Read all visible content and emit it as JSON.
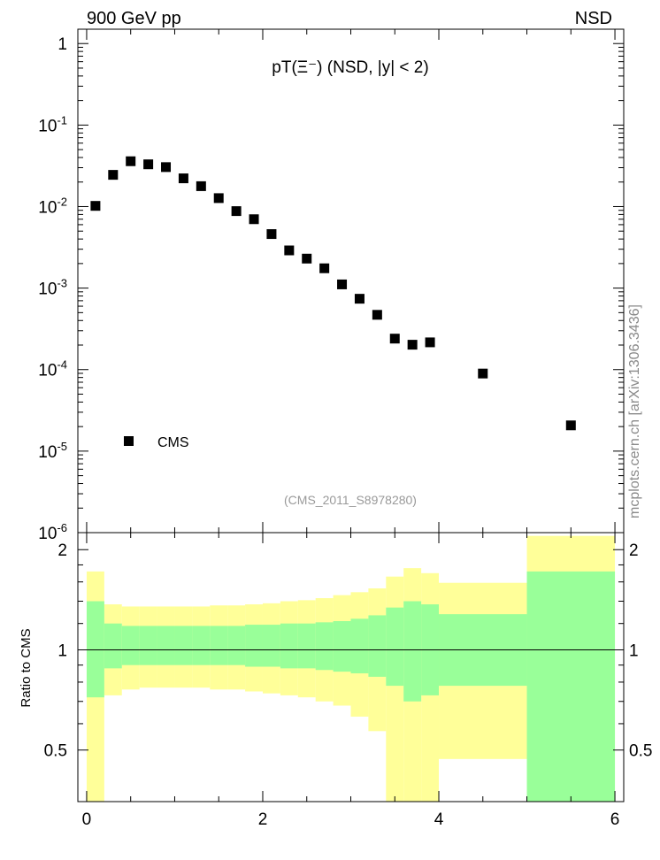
{
  "header": {
    "left": "900 GeV pp",
    "right": "NSD"
  },
  "side_label": "mcplots.cern.ch [arXiv:1306.3436]",
  "chart_data": [
    {
      "type": "scatter",
      "title": "pT(Ξ⁻) (NSD, |y| < 2)",
      "watermark": "(CMS_2011_S8978280)",
      "yscale": "log",
      "xlim": [
        -0.1,
        6.1
      ],
      "ylim": [
        1e-06,
        1.5
      ],
      "yticks": [
        {
          "value": 1,
          "label": "1"
        },
        {
          "value": 0.1,
          "label": "10^-1"
        },
        {
          "value": 0.01,
          "label": "10^-2"
        },
        {
          "value": 0.001,
          "label": "10^-3"
        },
        {
          "value": 0.0001,
          "label": "10^-4"
        },
        {
          "value": 1e-05,
          "label": "10^-5"
        },
        {
          "value": 1e-06,
          "label": "10^-6"
        }
      ],
      "legend": {
        "position": "bottom-left",
        "entries": [
          "CMS"
        ]
      },
      "series": [
        {
          "name": "CMS",
          "marker": "square",
          "color": "#000000",
          "x": [
            0.1,
            0.3,
            0.5,
            0.7,
            0.9,
            1.1,
            1.3,
            1.5,
            1.7,
            1.9,
            2.1,
            2.3,
            2.5,
            2.7,
            2.9,
            3.1,
            3.3,
            3.5,
            3.7,
            3.9,
            4.5,
            5.5
          ],
          "y": [
            0.0102,
            0.0245,
            0.036,
            0.033,
            0.0305,
            0.0222,
            0.0178,
            0.0127,
            0.0088,
            0.007,
            0.0046,
            0.0029,
            0.0023,
            0.00175,
            0.00111,
            0.00074,
            0.00047,
            0.00024,
            0.000202,
            0.000216,
            8.95e-05,
            2.07e-05
          ]
        }
      ]
    },
    {
      "type": "area",
      "ylabel": "Ratio to CMS",
      "xlim": [
        -0.1,
        6.1
      ],
      "ylim": [
        0.35,
        2.25
      ],
      "xticks": [
        0,
        2,
        4,
        6
      ],
      "yticks": [
        0.5,
        1,
        2
      ],
      "reference_line": 1,
      "colors": {
        "stat": "#99ff99",
        "total": "#ffff99"
      },
      "bins": [
        {
          "x0": 0.0,
          "x1": 0.2,
          "stat_lo": 0.72,
          "stat_hi": 1.4,
          "tot_lo": 0.35,
          "tot_hi": 1.72
        },
        {
          "x0": 0.2,
          "x1": 0.4,
          "stat_lo": 0.88,
          "stat_hi": 1.2,
          "tot_lo": 0.73,
          "tot_hi": 1.37
        },
        {
          "x0": 0.4,
          "x1": 0.6,
          "stat_lo": 0.9,
          "stat_hi": 1.18,
          "tot_lo": 0.76,
          "tot_hi": 1.35
        },
        {
          "x0": 0.6,
          "x1": 0.8,
          "stat_lo": 0.9,
          "stat_hi": 1.18,
          "tot_lo": 0.77,
          "tot_hi": 1.35
        },
        {
          "x0": 0.8,
          "x1": 1.0,
          "stat_lo": 0.9,
          "stat_hi": 1.18,
          "tot_lo": 0.77,
          "tot_hi": 1.35
        },
        {
          "x0": 1.0,
          "x1": 1.2,
          "stat_lo": 0.9,
          "stat_hi": 1.18,
          "tot_lo": 0.77,
          "tot_hi": 1.35
        },
        {
          "x0": 1.2,
          "x1": 1.4,
          "stat_lo": 0.9,
          "stat_hi": 1.18,
          "tot_lo": 0.77,
          "tot_hi": 1.35
        },
        {
          "x0": 1.4,
          "x1": 1.6,
          "stat_lo": 0.9,
          "stat_hi": 1.18,
          "tot_lo": 0.76,
          "tot_hi": 1.36
        },
        {
          "x0": 1.6,
          "x1": 1.8,
          "stat_lo": 0.9,
          "stat_hi": 1.18,
          "tot_lo": 0.76,
          "tot_hi": 1.36
        },
        {
          "x0": 1.8,
          "x1": 2.0,
          "stat_lo": 0.89,
          "stat_hi": 1.19,
          "tot_lo": 0.75,
          "tot_hi": 1.37
        },
        {
          "x0": 2.0,
          "x1": 2.2,
          "stat_lo": 0.89,
          "stat_hi": 1.19,
          "tot_lo": 0.74,
          "tot_hi": 1.38
        },
        {
          "x0": 2.2,
          "x1": 2.4,
          "stat_lo": 0.88,
          "stat_hi": 1.2,
          "tot_lo": 0.73,
          "tot_hi": 1.4
        },
        {
          "x0": 2.4,
          "x1": 2.6,
          "stat_lo": 0.88,
          "stat_hi": 1.2,
          "tot_lo": 0.72,
          "tot_hi": 1.41
        },
        {
          "x0": 2.6,
          "x1": 2.8,
          "stat_lo": 0.87,
          "stat_hi": 1.21,
          "tot_lo": 0.7,
          "tot_hi": 1.43
        },
        {
          "x0": 2.8,
          "x1": 3.0,
          "stat_lo": 0.86,
          "stat_hi": 1.22,
          "tot_lo": 0.68,
          "tot_hi": 1.46
        },
        {
          "x0": 3.0,
          "x1": 3.2,
          "stat_lo": 0.85,
          "stat_hi": 1.24,
          "tot_lo": 0.63,
          "tot_hi": 1.49
        },
        {
          "x0": 3.2,
          "x1": 3.4,
          "stat_lo": 0.83,
          "stat_hi": 1.27,
          "tot_lo": 0.57,
          "tot_hi": 1.53
        },
        {
          "x0": 3.4,
          "x1": 3.6,
          "stat_lo": 0.78,
          "stat_hi": 1.34,
          "tot_lo": 0.35,
          "tot_hi": 1.66
        },
        {
          "x0": 3.6,
          "x1": 3.8,
          "stat_lo": 0.7,
          "stat_hi": 1.4,
          "tot_lo": 0.35,
          "tot_hi": 1.76
        },
        {
          "x0": 3.8,
          "x1": 4.0,
          "stat_lo": 0.73,
          "stat_hi": 1.37,
          "tot_lo": 0.35,
          "tot_hi": 1.7
        },
        {
          "x0": 4.0,
          "x1": 5.0,
          "stat_lo": 0.78,
          "stat_hi": 1.28,
          "tot_lo": 0.47,
          "tot_hi": 1.59
        },
        {
          "x0": 5.0,
          "x1": 6.0,
          "stat_lo": 0.35,
          "stat_hi": 1.72,
          "tot_lo": 0.35,
          "tot_hi": 2.2
        }
      ]
    }
  ]
}
